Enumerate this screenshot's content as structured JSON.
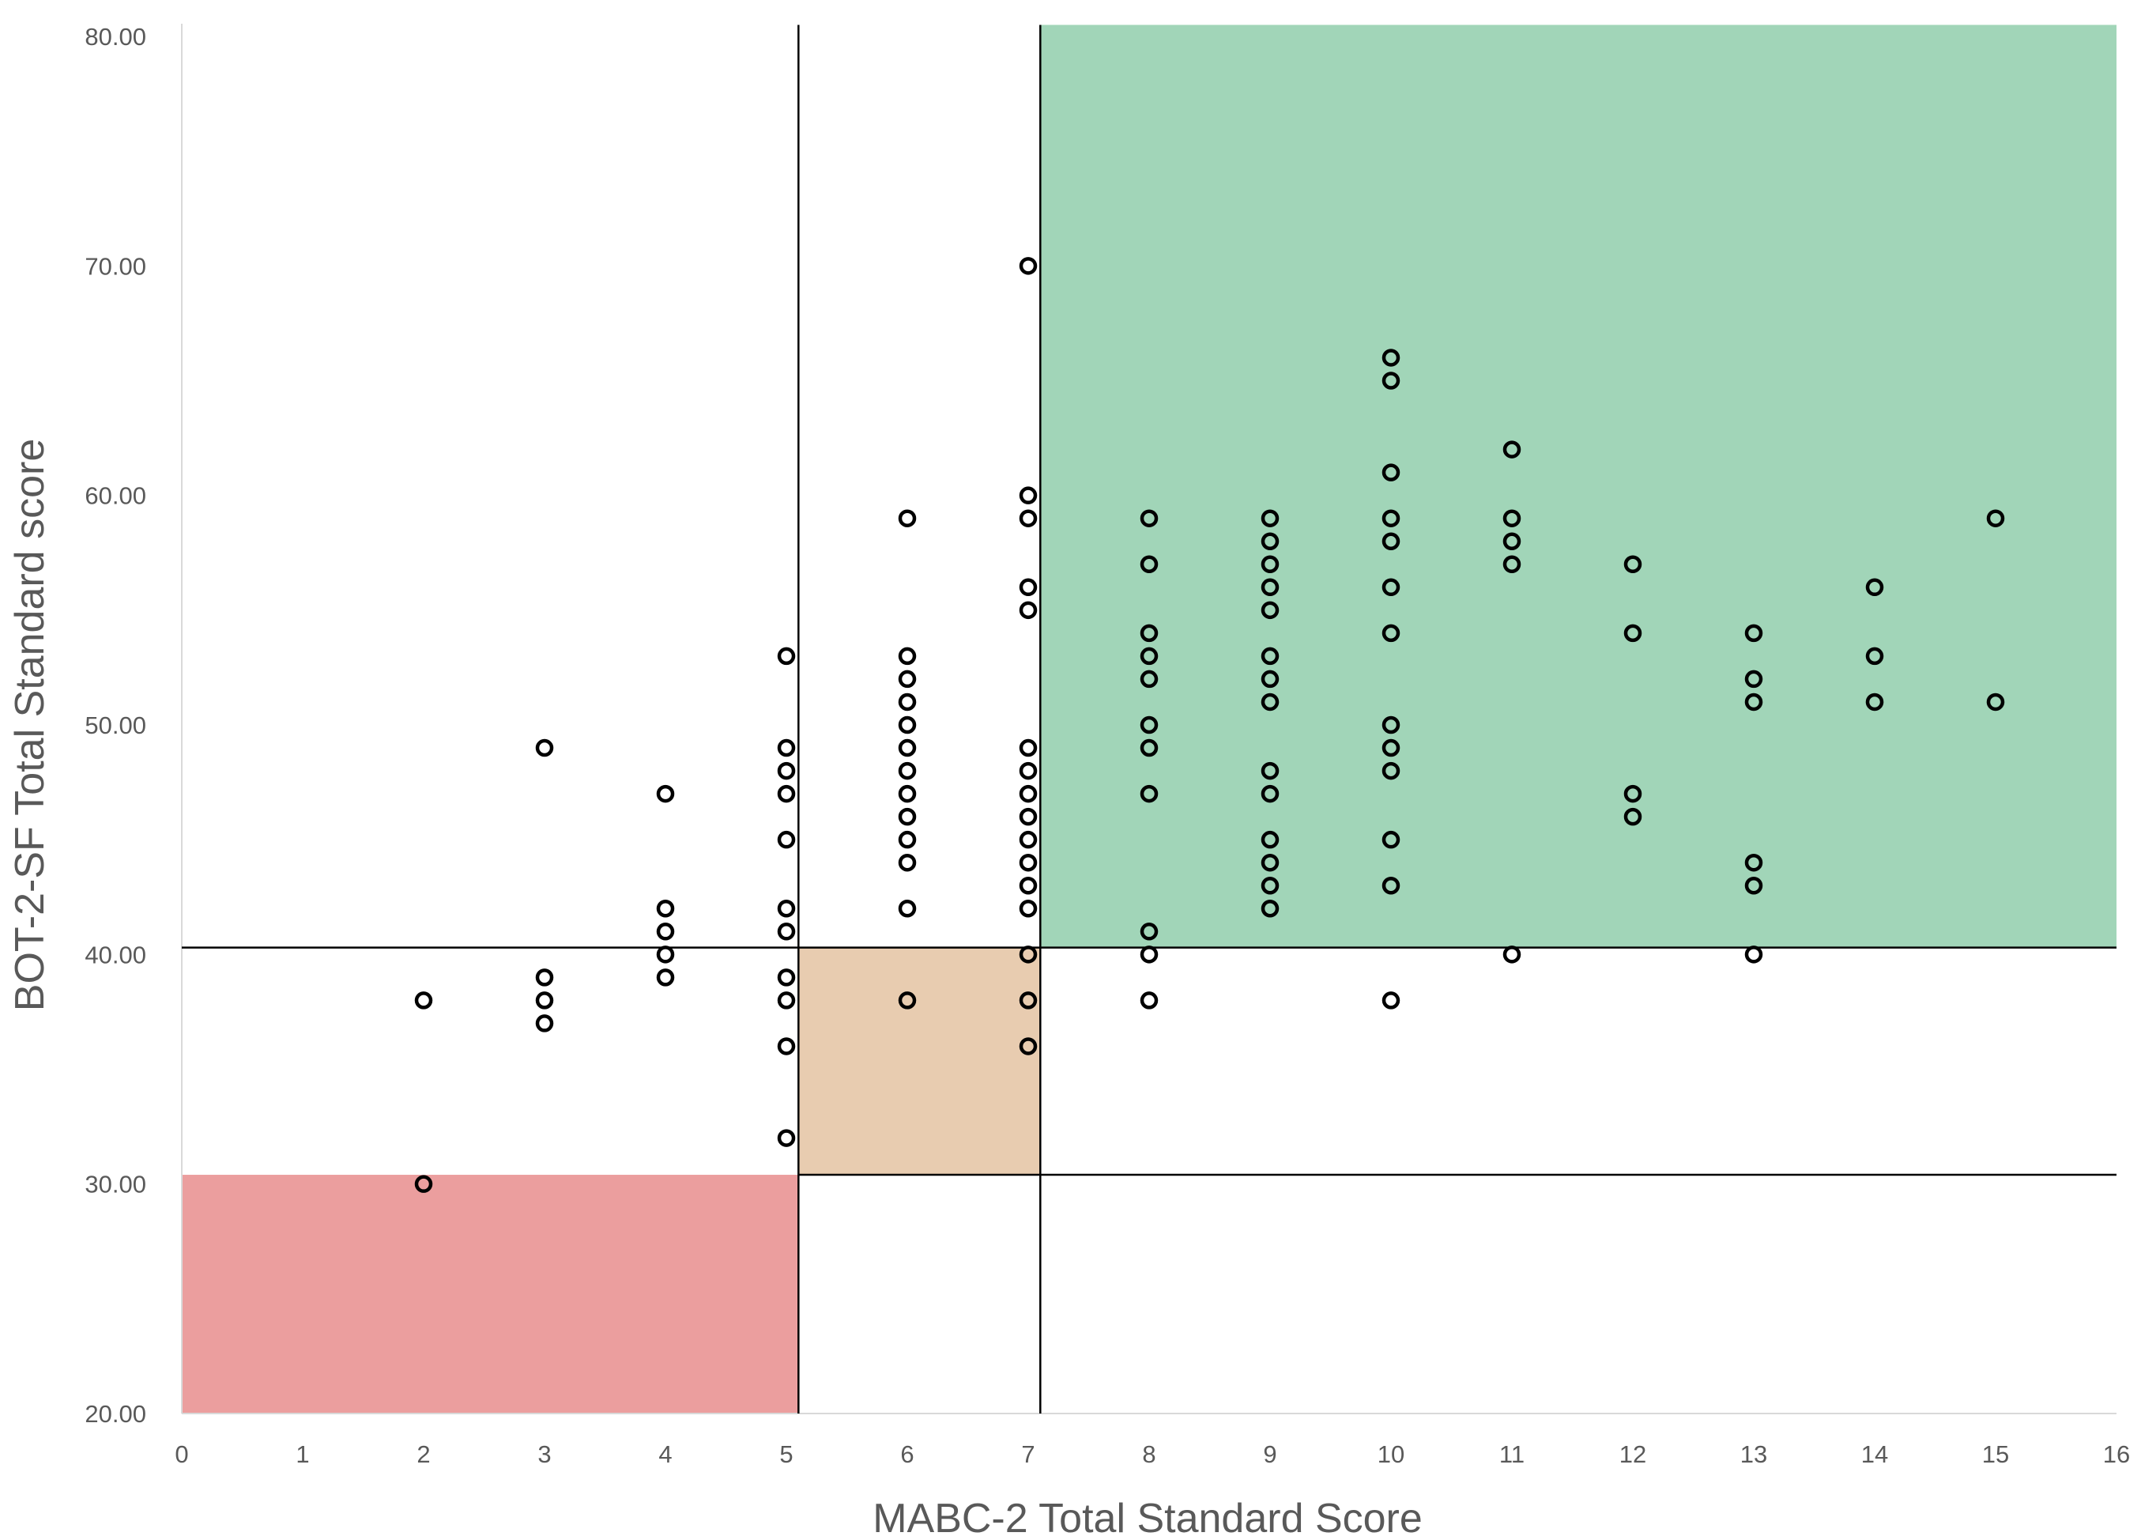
{
  "chart_data": {
    "type": "scatter",
    "title": "",
    "xlabel": "MABC-2 Total Standard Score",
    "ylabel": "BOT-2-SF Total Standard score",
    "xlim": [
      0,
      16
    ],
    "ylim": [
      20,
      80
    ],
    "x_ticks": [
      "0",
      "1",
      "2",
      "3",
      "4",
      "5",
      "6",
      "7",
      "8",
      "9",
      "10",
      "11",
      "12",
      "13",
      "14",
      "15",
      "16"
    ],
    "y_ticks": [
      "20.00",
      "30.00",
      "40.00",
      "50.00",
      "60.00",
      "70.00",
      "80.00"
    ],
    "grid": false,
    "legend": "none",
    "colors": {
      "red_region": "#eb9e9e",
      "orange_region": "#e8ccb0",
      "green_region": "#a1d5b8",
      "marker_stroke": "#000000",
      "reference_line": "#000000",
      "axis_line": "#d9d9d9",
      "text": "#595959"
    },
    "regions": [
      {
        "name": "red-zone",
        "x": [
          0,
          5.1
        ],
        "y": [
          20,
          30.4
        ]
      },
      {
        "name": "orange-zone",
        "x": [
          5.1,
          7.1
        ],
        "y": [
          30.4,
          40.3
        ]
      },
      {
        "name": "green-zone",
        "x": [
          7.1,
          16
        ],
        "y": [
          40.3,
          80.5
        ]
      }
    ],
    "reference_lines": {
      "vertical": [
        {
          "x": 5.1,
          "y_range": [
            20,
            80.5
          ]
        },
        {
          "x": 7.1,
          "y_range": [
            20,
            80.5
          ]
        }
      ],
      "horizontal": [
        {
          "y": 30.4,
          "x_range": [
            5.1,
            16
          ]
        },
        {
          "y": 40.3,
          "x_range": [
            0,
            16
          ]
        }
      ]
    },
    "points": [
      {
        "x": 2,
        "y": 38
      },
      {
        "x": 2,
        "y": 30
      },
      {
        "x": 3,
        "y": 49
      },
      {
        "x": 3,
        "y": 39
      },
      {
        "x": 3,
        "y": 38
      },
      {
        "x": 3,
        "y": 37
      },
      {
        "x": 4,
        "y": 47
      },
      {
        "x": 4,
        "y": 42
      },
      {
        "x": 4,
        "y": 41
      },
      {
        "x": 4,
        "y": 40
      },
      {
        "x": 4,
        "y": 39
      },
      {
        "x": 5,
        "y": 53
      },
      {
        "x": 5,
        "y": 49
      },
      {
        "x": 5,
        "y": 48
      },
      {
        "x": 5,
        "y": 47
      },
      {
        "x": 5,
        "y": 45
      },
      {
        "x": 5,
        "y": 42
      },
      {
        "x": 5,
        "y": 41
      },
      {
        "x": 5,
        "y": 39
      },
      {
        "x": 5,
        "y": 38
      },
      {
        "x": 5,
        "y": 36
      },
      {
        "x": 5,
        "y": 32
      },
      {
        "x": 6,
        "y": 59
      },
      {
        "x": 6,
        "y": 53
      },
      {
        "x": 6,
        "y": 52
      },
      {
        "x": 6,
        "y": 51
      },
      {
        "x": 6,
        "y": 50
      },
      {
        "x": 6,
        "y": 49
      },
      {
        "x": 6,
        "y": 48
      },
      {
        "x": 6,
        "y": 47
      },
      {
        "x": 6,
        "y": 46
      },
      {
        "x": 6,
        "y": 45
      },
      {
        "x": 6,
        "y": 44
      },
      {
        "x": 6,
        "y": 42
      },
      {
        "x": 6,
        "y": 38
      },
      {
        "x": 7,
        "y": 70
      },
      {
        "x": 7,
        "y": 60
      },
      {
        "x": 7,
        "y": 59
      },
      {
        "x": 7,
        "y": 56
      },
      {
        "x": 7,
        "y": 55
      },
      {
        "x": 7,
        "y": 49
      },
      {
        "x": 7,
        "y": 48
      },
      {
        "x": 7,
        "y": 47
      },
      {
        "x": 7,
        "y": 46
      },
      {
        "x": 7,
        "y": 45
      },
      {
        "x": 7,
        "y": 44
      },
      {
        "x": 7,
        "y": 43
      },
      {
        "x": 7,
        "y": 42
      },
      {
        "x": 7,
        "y": 40
      },
      {
        "x": 7,
        "y": 38
      },
      {
        "x": 7,
        "y": 36
      },
      {
        "x": 8,
        "y": 59
      },
      {
        "x": 8,
        "y": 57
      },
      {
        "x": 8,
        "y": 54
      },
      {
        "x": 8,
        "y": 53
      },
      {
        "x": 8,
        "y": 52
      },
      {
        "x": 8,
        "y": 50
      },
      {
        "x": 8,
        "y": 49
      },
      {
        "x": 8,
        "y": 47
      },
      {
        "x": 8,
        "y": 41
      },
      {
        "x": 8,
        "y": 40
      },
      {
        "x": 8,
        "y": 38
      },
      {
        "x": 9,
        "y": 59
      },
      {
        "x": 9,
        "y": 58
      },
      {
        "x": 9,
        "y": 57
      },
      {
        "x": 9,
        "y": 56
      },
      {
        "x": 9,
        "y": 55
      },
      {
        "x": 9,
        "y": 53
      },
      {
        "x": 9,
        "y": 52
      },
      {
        "x": 9,
        "y": 51
      },
      {
        "x": 9,
        "y": 48
      },
      {
        "x": 9,
        "y": 47
      },
      {
        "x": 9,
        "y": 45
      },
      {
        "x": 9,
        "y": 44
      },
      {
        "x": 9,
        "y": 43
      },
      {
        "x": 9,
        "y": 42
      },
      {
        "x": 10,
        "y": 66
      },
      {
        "x": 10,
        "y": 65
      },
      {
        "x": 10,
        "y": 61
      },
      {
        "x": 10,
        "y": 59
      },
      {
        "x": 10,
        "y": 58
      },
      {
        "x": 10,
        "y": 56
      },
      {
        "x": 10,
        "y": 54
      },
      {
        "x": 10,
        "y": 50
      },
      {
        "x": 10,
        "y": 49
      },
      {
        "x": 10,
        "y": 48
      },
      {
        "x": 10,
        "y": 45
      },
      {
        "x": 10,
        "y": 43
      },
      {
        "x": 10,
        "y": 38
      },
      {
        "x": 11,
        "y": 62
      },
      {
        "x": 11,
        "y": 59
      },
      {
        "x": 11,
        "y": 58
      },
      {
        "x": 11,
        "y": 57
      },
      {
        "x": 11,
        "y": 40
      },
      {
        "x": 12,
        "y": 57
      },
      {
        "x": 12,
        "y": 54
      },
      {
        "x": 12,
        "y": 47
      },
      {
        "x": 12,
        "y": 46
      },
      {
        "x": 13,
        "y": 54
      },
      {
        "x": 13,
        "y": 52
      },
      {
        "x": 13,
        "y": 51
      },
      {
        "x": 13,
        "y": 44
      },
      {
        "x": 13,
        "y": 43
      },
      {
        "x": 13,
        "y": 40
      },
      {
        "x": 14,
        "y": 56
      },
      {
        "x": 14,
        "y": 53
      },
      {
        "x": 14,
        "y": 51
      },
      {
        "x": 15,
        "y": 59
      },
      {
        "x": 15,
        "y": 51
      }
    ]
  }
}
